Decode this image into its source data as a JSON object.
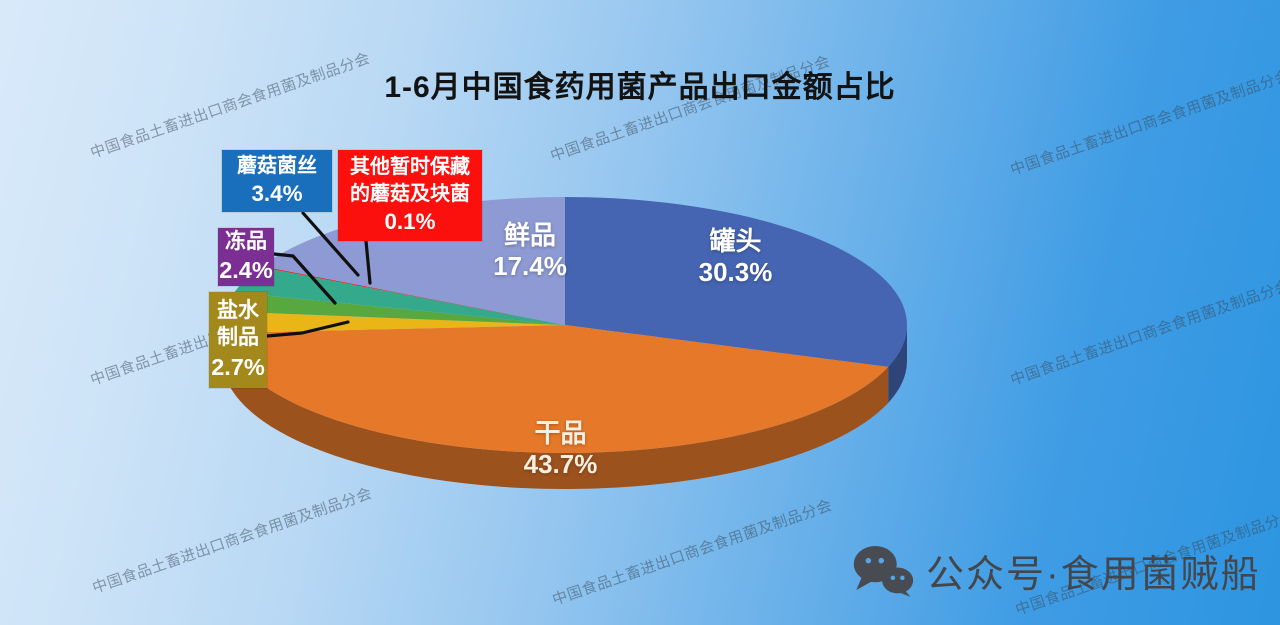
{
  "title": "1-6月中国食药用菌产品出口金额占比",
  "watermark": {
    "text": "中国食品土畜进出口商会食用菌及制品分会"
  },
  "footer": {
    "icon": "wechat-icon",
    "wechat_label": "公众号·食用菌贼船"
  },
  "colors": {
    "background_light": "#d8eafa",
    "background_deep": "#2d95e1",
    "leader_line": "#101010",
    "title_text": "#131313"
  },
  "chart_data": {
    "type": "pie",
    "style": "3d-exploded-callouts",
    "title": "1-6月中国食药用菌产品出口金额占比",
    "unit": "%",
    "start_angle": "12-o'clock",
    "direction": "clockwise",
    "slices": [
      {
        "label": "罐头",
        "value": 30.3,
        "color": "#4565b2",
        "label_placement": "on-slice"
      },
      {
        "label": "干品",
        "value": 43.7,
        "color": "#e6782a",
        "label_placement": "on-slice"
      },
      {
        "label": "盐水制品",
        "value": 2.7,
        "color": "#e9b517",
        "label_placement": "callout"
      },
      {
        "label": "冻品",
        "value": 2.4,
        "color": "#57a83f",
        "label_placement": "callout"
      },
      {
        "label": "蘑菇菌丝",
        "value": 3.4,
        "color": "#35a98c",
        "label_placement": "callout"
      },
      {
        "label": "其他暂时保藏的蘑菇及块菌",
        "value": 0.1,
        "color": "#fb100d",
        "label_placement": "callout"
      },
      {
        "label": "鲜品",
        "value": 17.4,
        "color": "#8d9ad3",
        "label_placement": "on-slice"
      }
    ]
  },
  "pie_labels": {
    "fresh": {
      "name": "鲜品",
      "pct": "17.4%"
    },
    "canned": {
      "name": "罐头",
      "pct": "30.3%"
    },
    "dried": {
      "name": "干品",
      "pct": "43.7%"
    }
  },
  "callouts": {
    "mycelium": {
      "bg": "#1a6fbd",
      "lines": [
        "蘑菇菌丝",
        "3.4%"
      ]
    },
    "other": {
      "bg": "#fb100d",
      "lines": [
        "其他暂时保藏",
        "的蘑菇及块菌",
        "0.1%"
      ]
    },
    "frozen": {
      "bg": "#7b2f92",
      "lines": [
        "冻品",
        "2.4%"
      ]
    },
    "brine": {
      "bg": "#a3891c",
      "lines": [
        "盐水",
        "制品",
        "2.7%"
      ]
    }
  }
}
